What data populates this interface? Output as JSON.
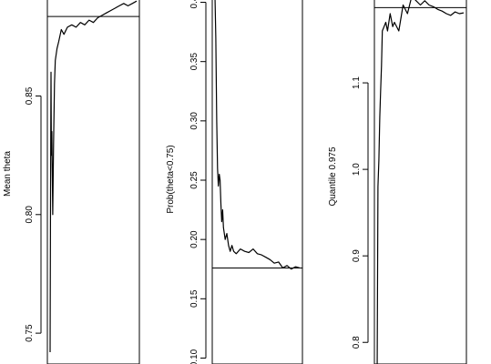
{
  "chart_data": [
    {
      "type": "line",
      "ylabel": "Mean theta",
      "y_ticks": [
        0.75,
        0.8,
        0.85
      ],
      "y_tick_labels": [
        "0.75",
        "0.80",
        "0.85"
      ],
      "ylim": [
        0.737,
        0.892
      ],
      "reference_line": 0.8835,
      "series": [
        {
          "x": [
            0,
            0.005,
            0.01,
            0.015,
            0.02,
            0.03,
            0.04,
            0.05,
            0.06,
            0.08,
            0.1,
            0.13,
            0.16,
            0.2,
            0.25,
            0.3,
            0.35,
            0.4,
            0.45,
            0.5,
            0.55,
            0.6,
            0.65,
            0.7,
            0.75,
            0.8,
            0.85,
            0.9,
            0.95,
            1.0
          ],
          "y": [
            0.742,
            0.81,
            0.86,
            0.825,
            0.835,
            0.8,
            0.83,
            0.855,
            0.865,
            0.87,
            0.873,
            0.878,
            0.876,
            0.879,
            0.88,
            0.879,
            0.881,
            0.88,
            0.882,
            0.881,
            0.883,
            0.884,
            0.885,
            0.886,
            0.887,
            0.888,
            0.889,
            0.888,
            0.889,
            0.89
          ]
        }
      ]
    },
    {
      "type": "line",
      "ylabel": "Prob(theta<0.75)",
      "y_ticks": [
        0.1,
        0.15,
        0.2,
        0.25,
        0.3,
        0.35,
        0.4
      ],
      "y_tick_labels": [
        "0.10",
        "0.15",
        "0.20",
        "0.25",
        "0.30",
        "0.35",
        "0.4"
      ],
      "ylim": [
        0.095,
        0.405
      ],
      "reference_line": 0.176,
      "series": [
        {
          "x": [
            0,
            0.01,
            0.02,
            0.03,
            0.04,
            0.05,
            0.06,
            0.07,
            0.08,
            0.09,
            0.1,
            0.12,
            0.14,
            0.16,
            0.18,
            0.2,
            0.22,
            0.25,
            0.3,
            0.35,
            0.4,
            0.45,
            0.5,
            0.55,
            0.6,
            0.65,
            0.7,
            0.75,
            0.8,
            0.85,
            0.9,
            0.95,
            1.0
          ],
          "y": [
            0.405,
            0.37,
            0.3,
            0.26,
            0.245,
            0.255,
            0.25,
            0.23,
            0.215,
            0.225,
            0.21,
            0.2,
            0.205,
            0.195,
            0.19,
            0.195,
            0.19,
            0.188,
            0.192,
            0.19,
            0.189,
            0.192,
            0.188,
            0.187,
            0.185,
            0.183,
            0.18,
            0.181,
            0.176,
            0.178,
            0.175,
            0.177,
            0.176
          ]
        }
      ]
    },
    {
      "type": "line",
      "ylabel": "Quantile 0.975",
      "y_ticks": [
        0.8,
        0.9,
        1.0,
        1.1
      ],
      "y_tick_labels": [
        "0.8",
        "0.9",
        "1.0",
        "1.1"
      ],
      "ylim": [
        0.775,
        1.2
      ],
      "reference_line": 1.187,
      "series": [
        {
          "x": [
            0,
            0.01,
            0.02,
            0.03,
            0.04,
            0.05,
            0.06,
            0.08,
            0.1,
            0.12,
            0.15,
            0.18,
            0.2,
            0.25,
            0.3,
            0.35,
            0.4,
            0.45,
            0.5,
            0.55,
            0.6,
            0.65,
            0.7,
            0.75,
            0.8,
            0.85,
            0.9,
            0.95,
            1.0
          ],
          "y": [
            0.76,
            0.98,
            1.01,
            1.06,
            1.09,
            1.12,
            1.16,
            1.165,
            1.17,
            1.16,
            1.18,
            1.165,
            1.17,
            1.16,
            1.19,
            1.18,
            1.2,
            1.195,
            1.19,
            1.195,
            1.19,
            1.188,
            1.185,
            1.183,
            1.18,
            1.178,
            1.182,
            1.18,
            1.181
          ]
        }
      ]
    }
  ]
}
